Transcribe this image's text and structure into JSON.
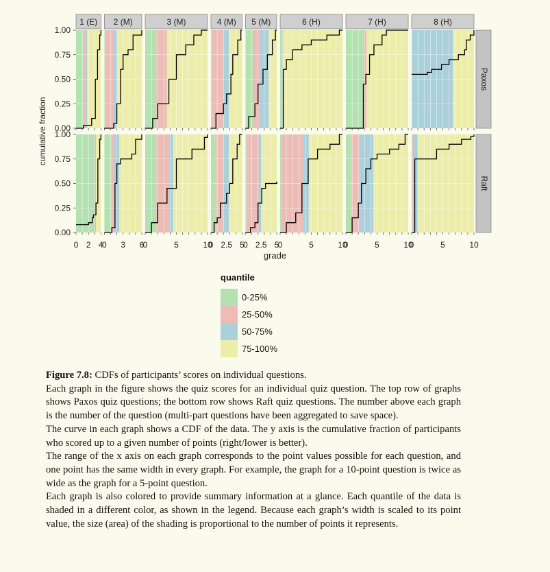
{
  "chart_data": {
    "type": "step",
    "ylabel": "cumulative fraction",
    "xlabel": "grade",
    "ylim": [
      0,
      1
    ],
    "y_ticks": [
      "0.00",
      "0.25",
      "0.50",
      "0.75",
      "1.00"
    ],
    "rows": [
      "Paxos",
      "Raft"
    ],
    "grid": true,
    "legend": {
      "title": "quantile",
      "placement": "bottom-center",
      "items": [
        {
          "label": "0-25%",
          "color": "#b3e2b0"
        },
        {
          "label": "25-50%",
          "color": "#edbcb6"
        },
        {
          "label": "50-75%",
          "color": "#aad0dc"
        },
        {
          "label": "75-100%",
          "color": "#ecedaa"
        }
      ]
    },
    "panels": [
      {
        "label": "1 (E)",
        "max": 4,
        "tick_labels": [
          "0",
          "2",
          "4"
        ],
        "tick_values": [
          0,
          2,
          4
        ],
        "Paxos": {
          "cdf": [
            [
              0,
              0
            ],
            [
              1.2,
              0.03
            ],
            [
              2.5,
              0.1
            ],
            [
              3.1,
              0.5
            ],
            [
              3.45,
              0.8
            ],
            [
              3.8,
              0.95
            ],
            [
              4,
              1.0
            ]
          ],
          "quantiles": [
            1.2,
            1.6,
            1.8
          ]
        },
        "Raft": {
          "cdf": [
            [
              0,
              0.08
            ],
            [
              2.0,
              0.1
            ],
            [
              2.6,
              0.15
            ],
            [
              2.8,
              0.18
            ],
            [
              3.2,
              0.3
            ],
            [
              3.5,
              0.75
            ],
            [
              3.8,
              0.95
            ],
            [
              4,
              1.0
            ]
          ],
          "quantiles": [
            2.8,
            2.95,
            3.2
          ]
        }
      },
      {
        "label": "2 (M)",
        "max": 6,
        "tick_labels": [
          "0",
          "3",
          "6"
        ],
        "tick_values": [
          0,
          3,
          6
        ],
        "Paxos": {
          "cdf": [
            [
              0,
              0
            ],
            [
              1.5,
              0.05
            ],
            [
              2.0,
              0.25
            ],
            [
              2.6,
              0.6
            ],
            [
              3.0,
              0.75
            ],
            [
              3.8,
              0.8
            ],
            [
              4.6,
              0.95
            ],
            [
              6,
              1.0
            ]
          ],
          "quantiles": [
            0.1,
            1.5,
            2.0
          ]
        },
        "Raft": {
          "cdf": [
            [
              0,
              0
            ],
            [
              1.2,
              0.05
            ],
            [
              1.7,
              0.5
            ],
            [
              2.0,
              0.7
            ],
            [
              2.6,
              0.75
            ],
            [
              4.4,
              0.8
            ],
            [
              5.0,
              0.95
            ],
            [
              6,
              1.0
            ]
          ],
          "quantiles": [
            1.2,
            1.6,
            2.4
          ]
        }
      },
      {
        "label": "3 (M)",
        "max": 10,
        "tick_labels": [
          "0",
          "5",
          "10"
        ],
        "tick_values": [
          0,
          5,
          10
        ],
        "Paxos": {
          "cdf": [
            [
              0,
              0
            ],
            [
              1.2,
              0.1
            ],
            [
              2.0,
              0.25
            ],
            [
              3.8,
              0.5
            ],
            [
              5.0,
              0.75
            ],
            [
              6.5,
              0.85
            ],
            [
              7.8,
              0.95
            ],
            [
              9.0,
              1.0
            ]
          ],
          "quantiles": [
            1.8,
            3.5,
            3.5
          ]
        },
        "Raft": {
          "cdf": [
            [
              0,
              0
            ],
            [
              1.0,
              0.1
            ],
            [
              2.0,
              0.3
            ],
            [
              3.5,
              0.45
            ],
            [
              5.0,
              0.75
            ],
            [
              7.5,
              0.85
            ],
            [
              9.5,
              0.97
            ],
            [
              10,
              1.0
            ]
          ],
          "quantiles": [
            1.8,
            3.8,
            4.5
          ]
        }
      },
      {
        "label": "4 (M)",
        "max": 5,
        "tick_labels": [
          "0",
          "2.5",
          "5"
        ],
        "tick_values": [
          0,
          2.5,
          5
        ],
        "Paxos": {
          "cdf": [
            [
              0,
              0
            ],
            [
              0.8,
              0.15
            ],
            [
              2.0,
              0.25
            ],
            [
              2.5,
              0.35
            ],
            [
              3.2,
              0.55
            ],
            [
              3.5,
              0.75
            ],
            [
              4.3,
              0.9
            ],
            [
              4.8,
              1.0
            ]
          ],
          "quantiles": [
            0.2,
            2.0,
            2.9
          ]
        },
        "Raft": {
          "cdf": [
            [
              0,
              0
            ],
            [
              0.5,
              0.1
            ],
            [
              1.0,
              0.15
            ],
            [
              1.5,
              0.3
            ],
            [
              2.5,
              0.4
            ],
            [
              3.0,
              0.5
            ],
            [
              3.5,
              0.75
            ],
            [
              4.2,
              0.9
            ],
            [
              4.6,
              1.0
            ]
          ],
          "quantiles": [
            0.8,
            2.0,
            2.9
          ]
        }
      },
      {
        "label": "5 (M)",
        "max": 5,
        "tick_labels": [
          "0",
          "2.5",
          "5"
        ],
        "tick_values": [
          0,
          2.5,
          5
        ],
        "Paxos": {
          "cdf": [
            [
              0,
              0
            ],
            [
              0.5,
              0.12
            ],
            [
              1.5,
              0.25
            ],
            [
              2.0,
              0.45
            ],
            [
              2.8,
              0.6
            ],
            [
              3.5,
              0.75
            ],
            [
              4.3,
              0.9
            ],
            [
              4.8,
              1.0
            ]
          ],
          "quantiles": [
            1.2,
            2.3,
            3.7
          ]
        },
        "Raft": {
          "cdf": [
            [
              0,
              0
            ],
            [
              0.8,
              0.05
            ],
            [
              1.5,
              0.1
            ],
            [
              2.0,
              0.3
            ],
            [
              2.6,
              0.45
            ],
            [
              3.2,
              0.5
            ],
            [
              5,
              0.52
            ]
          ],
          "quantiles": [
            0.2,
            2.1,
            2.5
          ]
        }
      },
      {
        "label": "6 (H)",
        "max": 10,
        "tick_labels": [
          "0",
          "5",
          "10"
        ],
        "tick_values": [
          0,
          5,
          10
        ],
        "Paxos": {
          "cdf": [
            [
              0,
              0
            ],
            [
              0.5,
              0.6
            ],
            [
              1.0,
              0.7
            ],
            [
              2.0,
              0.8
            ],
            [
              3.5,
              0.85
            ],
            [
              5.0,
              0.9
            ],
            [
              7.5,
              0.95
            ],
            [
              9.5,
              1.0
            ]
          ],
          "quantiles": [
            0.2,
            0.3,
            0.4
          ]
        },
        "Raft": {
          "cdf": [
            [
              0,
              0
            ],
            [
              1.0,
              0.1
            ],
            [
              2.5,
              0.2
            ],
            [
              3.5,
              0.5
            ],
            [
              4.5,
              0.75
            ],
            [
              6.0,
              0.85
            ],
            [
              8.0,
              0.9
            ],
            [
              9.5,
              1.0
            ]
          ],
          "quantiles": [
            0.2,
            3.7,
            4.6
          ]
        }
      },
      {
        "label": "7 (H)",
        "max": 10,
        "tick_labels": [
          "0",
          "5",
          "10"
        ],
        "tick_values": [
          0,
          5,
          10
        ],
        "Paxos": {
          "cdf": [
            [
              0,
              0
            ],
            [
              2.8,
              0.45
            ],
            [
              3.2,
              0.55
            ],
            [
              3.8,
              0.75
            ],
            [
              4.5,
              0.85
            ],
            [
              5.8,
              0.95
            ],
            [
              6.5,
              1.0
            ]
          ],
          "quantiles": [
            2.8,
            3.3,
            3.3
          ]
        },
        "Raft": {
          "cdf": [
            [
              0,
              0
            ],
            [
              1.0,
              0.15
            ],
            [
              2.0,
              0.3
            ],
            [
              2.5,
              0.5
            ],
            [
              3.2,
              0.65
            ],
            [
              4.0,
              0.75
            ],
            [
              5.0,
              0.8
            ],
            [
              7.0,
              0.85
            ],
            [
              8.5,
              0.9
            ],
            [
              9.5,
              1.0
            ]
          ],
          "quantiles": [
            1.0,
            2.3,
            4.4
          ]
        }
      },
      {
        "label": "8 (H)",
        "max": 10,
        "tick_labels": [
          "0",
          "5",
          "10"
        ],
        "tick_values": [
          0,
          5,
          10
        ],
        "Paxos": {
          "cdf": [
            [
              0,
              0.55
            ],
            [
              2.5,
              0.57
            ],
            [
              3.2,
              0.6
            ],
            [
              4.8,
              0.65
            ],
            [
              6.0,
              0.7
            ],
            [
              7.5,
              0.75
            ],
            [
              8.5,
              0.8
            ],
            [
              8.8,
              0.9
            ],
            [
              9.4,
              0.95
            ],
            [
              10,
              1.0
            ]
          ],
          "quantiles": [
            0.05,
            0.1,
            6.6
          ]
        },
        "Raft": {
          "cdf": [
            [
              0,
              0
            ],
            [
              0.5,
              0.75
            ],
            [
              4.0,
              0.85
            ],
            [
              6.0,
              0.9
            ],
            [
              8.0,
              0.95
            ],
            [
              9.5,
              0.98
            ],
            [
              10,
              1.0
            ]
          ],
          "quantiles": [
            0.05,
            0.2,
            1.0
          ]
        }
      }
    ]
  },
  "caption": {
    "label": "Figure 7.8:",
    "title": "CDFs of participants’ scores on individual questions.",
    "paragraphs": [
      "Each graph in the figure shows the quiz scores for an individual quiz question. The top row of graphs shows Paxos quiz questions; the bottom row shows Raft quiz questions. The number above each graph is the number of the question (multi-part questions have been aggregated to save space).",
      "The curve in each graph shows a CDF of the data. The y axis is the cumulative fraction of participants who scored up to a given number of points (right/lower is better).",
      "The range of the x axis on each graph corresponds to the point values possible for each question, and one point has the same width in every graph. For example, the graph for a 10-point question is twice as wide as the graph for a 5-point question.",
      "Each graph is also colored to provide summary information at a glance. Each quantile of the data is shaded in a different color, as shown in the legend. Because each graph’s width is scaled to its point value, the size (area) of the shading is proportional to the number of points it represents."
    ]
  }
}
